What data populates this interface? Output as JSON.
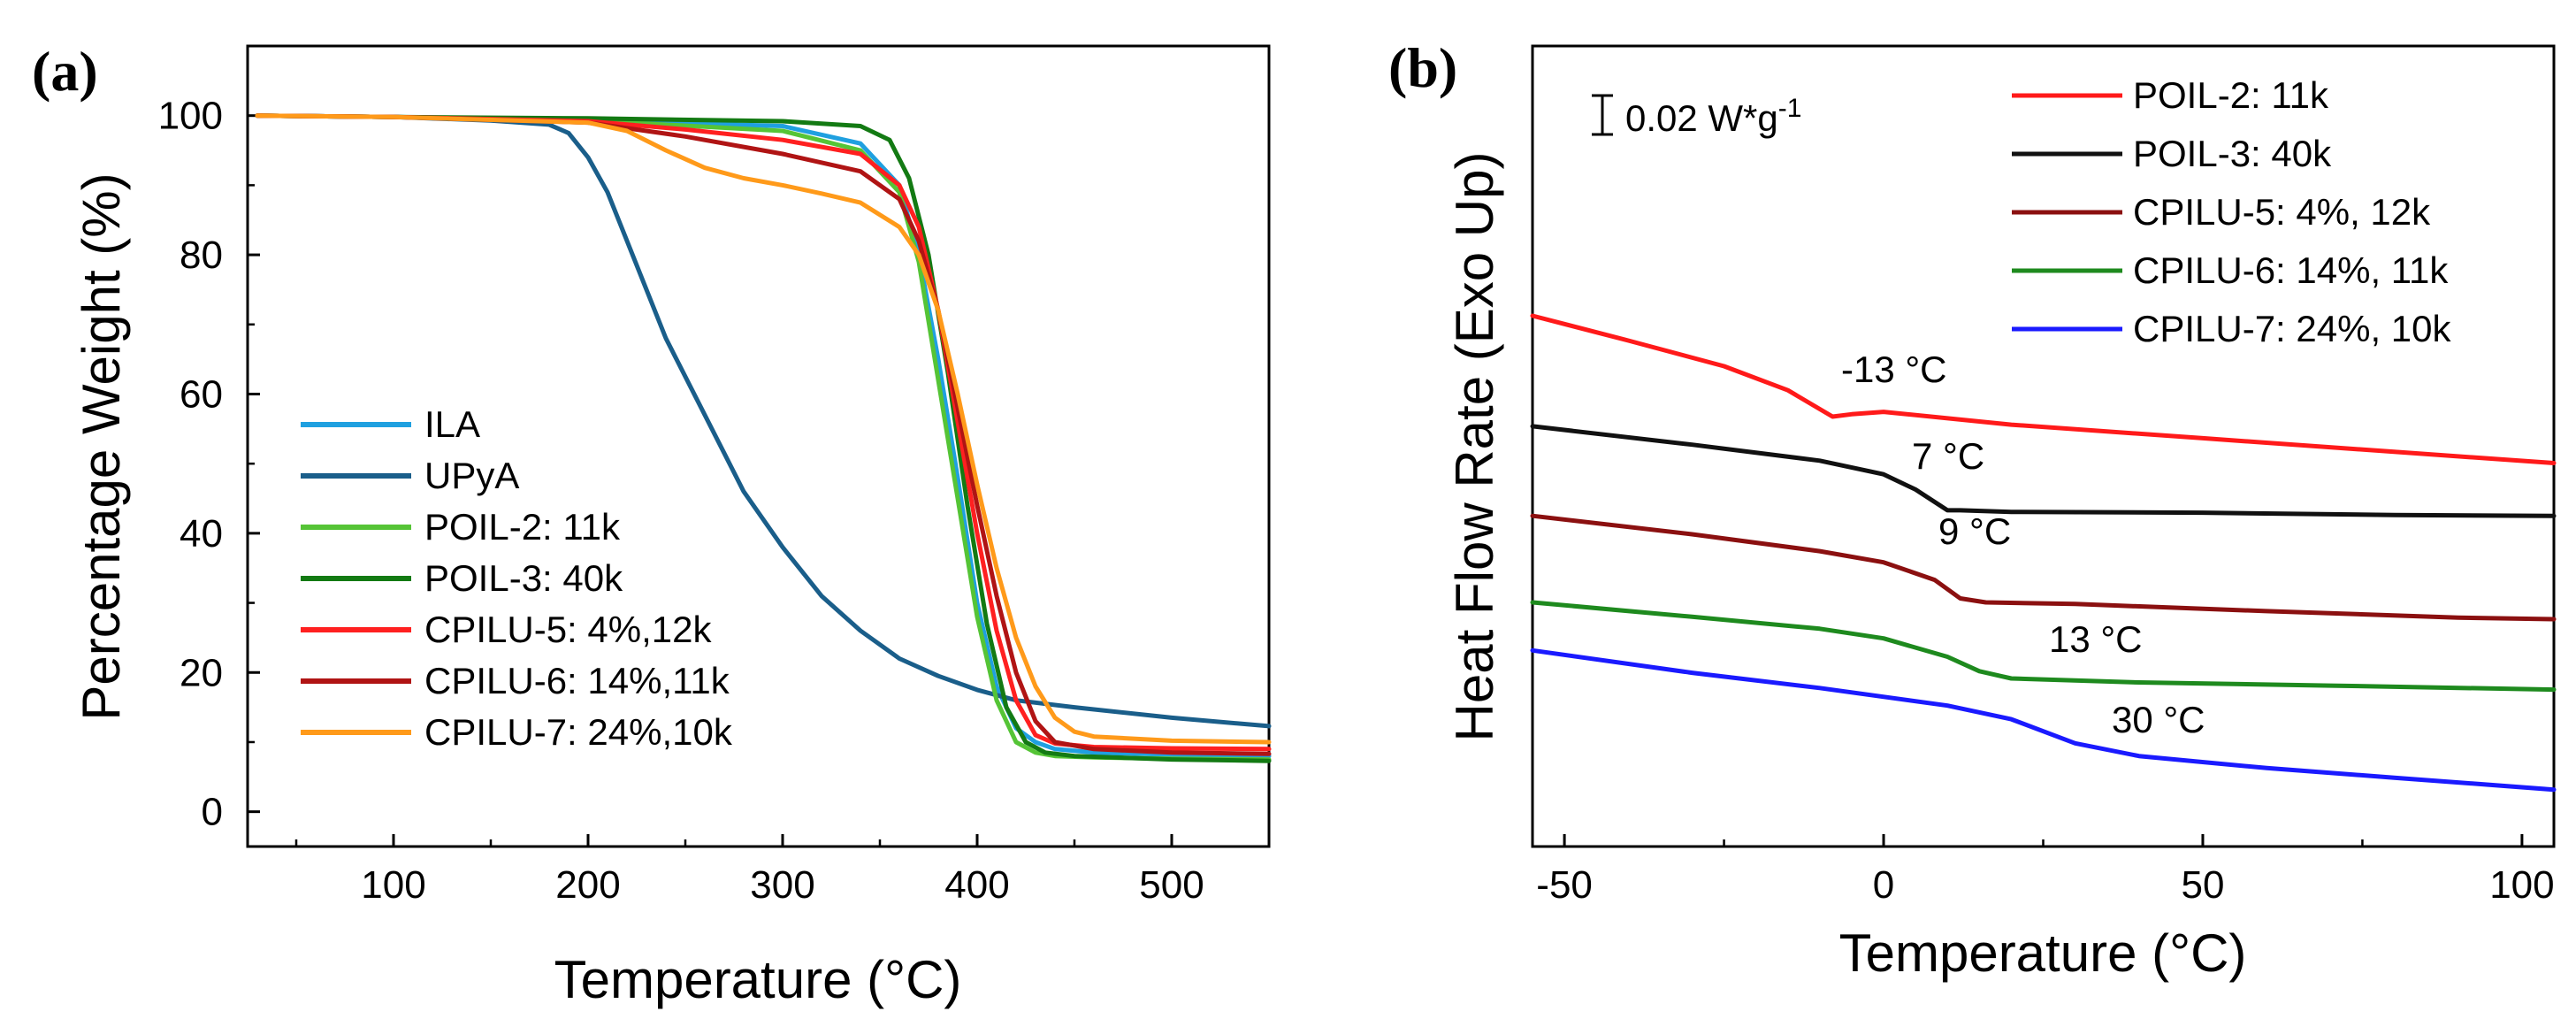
{
  "chart_data": [
    {
      "type": "line",
      "panel_label": "(a)",
      "xlabel": "Temperature (°C)",
      "ylabel": "Percentage Weight (%)",
      "xlim": [
        25,
        550
      ],
      "ylim": [
        -5,
        110
      ],
      "xticks": [
        100,
        200,
        300,
        400,
        500
      ],
      "yticks": [
        0,
        20,
        40,
        60,
        80,
        100
      ],
      "legend_position": "bottom-left",
      "series": [
        {
          "name": "ILA",
          "color": "#1fa0e0",
          "x": [
            30,
            100,
            200,
            300,
            340,
            360,
            370,
            380,
            390,
            400,
            410,
            420,
            430,
            440,
            460,
            500,
            550
          ],
          "y": [
            100,
            99.8,
            99.3,
            98.5,
            96,
            90,
            80,
            65,
            48,
            30,
            18,
            12,
            10,
            9,
            8.5,
            8.2,
            8
          ]
        },
        {
          "name": "UPyA",
          "color": "#1a5e8a",
          "x": [
            30,
            100,
            150,
            180,
            190,
            200,
            210,
            220,
            240,
            260,
            280,
            300,
            320,
            340,
            360,
            380,
            400,
            420,
            450,
            500,
            550
          ],
          "y": [
            100,
            99.8,
            99.3,
            98.7,
            97.5,
            94,
            89,
            82,
            68,
            57,
            46,
            38,
            31,
            26,
            22,
            19.5,
            17.5,
            16,
            15,
            13.5,
            12.3
          ]
        },
        {
          "name": "POIL-2: 11k",
          "color": "#55c436",
          "x": [
            30,
            100,
            200,
            300,
            340,
            360,
            370,
            380,
            390,
            400,
            410,
            420,
            430,
            440,
            460,
            500,
            550
          ],
          "y": [
            100,
            99.8,
            99.3,
            97.8,
            95,
            89,
            79,
            62,
            45,
            28,
            16,
            10,
            8.5,
            8,
            7.8,
            7.6,
            7.5
          ]
        },
        {
          "name": "POIL-3: 40k",
          "color": "#137a13",
          "x": [
            30,
            100,
            200,
            300,
            340,
            355,
            365,
            375,
            385,
            395,
            405,
            415,
            425,
            435,
            450,
            500,
            550
          ],
          "y": [
            100,
            99.8,
            99.6,
            99.2,
            98.5,
            96.5,
            91,
            80,
            63,
            44,
            27,
            15,
            10,
            8.5,
            8,
            7.5,
            7.3
          ]
        },
        {
          "name": "CPILU-5: 4%,12k",
          "color": "#ff2020",
          "x": [
            30,
            100,
            200,
            250,
            300,
            340,
            360,
            370,
            380,
            390,
            400,
            410,
            420,
            430,
            440,
            460,
            500,
            550
          ],
          "y": [
            100,
            99.8,
            99.2,
            98,
            96.5,
            94.5,
            90,
            84,
            72,
            56,
            40,
            26,
            16,
            11,
            9.8,
            9.3,
            9.1,
            9
          ]
        },
        {
          "name": "CPILU-6: 14%,11k",
          "color": "#b01414",
          "x": [
            30,
            100,
            200,
            250,
            300,
            340,
            360,
            370,
            380,
            390,
            400,
            410,
            420,
            430,
            440,
            460,
            500,
            550
          ],
          "y": [
            100,
            99.8,
            99,
            97,
            94.5,
            92,
            88,
            82,
            72,
            58,
            44,
            31,
            20,
            13,
            10,
            9,
            8.5,
            8.3
          ]
        },
        {
          "name": "CPILU-7: 24%,10k",
          "color": "#ff9a1a",
          "x": [
            30,
            100,
            200,
            220,
            240,
            260,
            280,
            300,
            320,
            340,
            360,
            370,
            380,
            390,
            400,
            410,
            420,
            430,
            440,
            450,
            460,
            500,
            550
          ],
          "y": [
            100,
            99.8,
            99,
            97.8,
            95,
            92.5,
            91,
            90,
            88.8,
            87.5,
            84,
            80,
            72,
            60,
            47,
            35,
            25,
            18,
            13.5,
            11.5,
            10.8,
            10.2,
            10
          ]
        }
      ]
    },
    {
      "type": "line",
      "panel_label": "(b)",
      "xlabel": "Temperature (°C)",
      "ylabel": "Heat Flow Rate (Exo Up)",
      "xlim": [
        -55,
        105
      ],
      "ylim": [
        0,
        1
      ],
      "xticks": [
        -50,
        0,
        50,
        100
      ],
      "scale_bar": "0.02 W*g",
      "scale_bar_sup": "-1",
      "legend_position": "top-right",
      "annotations": [
        "-13 °C",
        "7 °C",
        "9 °C",
        "13 °C",
        "30 °C"
      ],
      "series": [
        {
          "name": "POIL-2: 11k",
          "color": "#ff1a1a",
          "x": [
            -55,
            -40,
            -25,
            -15,
            -8,
            -5,
            0,
            20,
            50,
            80,
            105
          ],
          "y": [
            0.663,
            0.632,
            0.6,
            0.57,
            0.537,
            0.54,
            0.543,
            0.527,
            0.51,
            0.493,
            0.479
          ]
        },
        {
          "name": "POIL-3: 40k",
          "color": "#111111",
          "x": [
            -55,
            -30,
            -10,
            0,
            5,
            10,
            12,
            20,
            50,
            80,
            105
          ],
          "y": [
            0.525,
            0.502,
            0.482,
            0.465,
            0.446,
            0.42,
            0.42,
            0.418,
            0.417,
            0.414,
            0.413
          ]
        },
        {
          "name": "CPILU-5: 4%, 12k",
          "color": "#8b1010",
          "x": [
            -55,
            -30,
            -10,
            0,
            8,
            12,
            16,
            30,
            60,
            90,
            105
          ],
          "y": [
            0.413,
            0.39,
            0.369,
            0.355,
            0.333,
            0.31,
            0.305,
            0.303,
            0.294,
            0.286,
            0.284
          ]
        },
        {
          "name": "CPILU-6: 14%, 11k",
          "color": "#1e8a1e",
          "x": [
            -55,
            -30,
            -10,
            0,
            10,
            15,
            20,
            40,
            70,
            105
          ],
          "y": [
            0.305,
            0.287,
            0.272,
            0.26,
            0.237,
            0.219,
            0.21,
            0.205,
            0.201,
            0.196
          ]
        },
        {
          "name": "CPILU-7: 24%, 10k",
          "color": "#1a1aff",
          "x": [
            -55,
            -30,
            -10,
            10,
            20,
            30,
            40,
            60,
            80,
            105
          ],
          "y": [
            0.245,
            0.217,
            0.198,
            0.176,
            0.159,
            0.129,
            0.113,
            0.098,
            0.086,
            0.071
          ]
        }
      ]
    }
  ]
}
